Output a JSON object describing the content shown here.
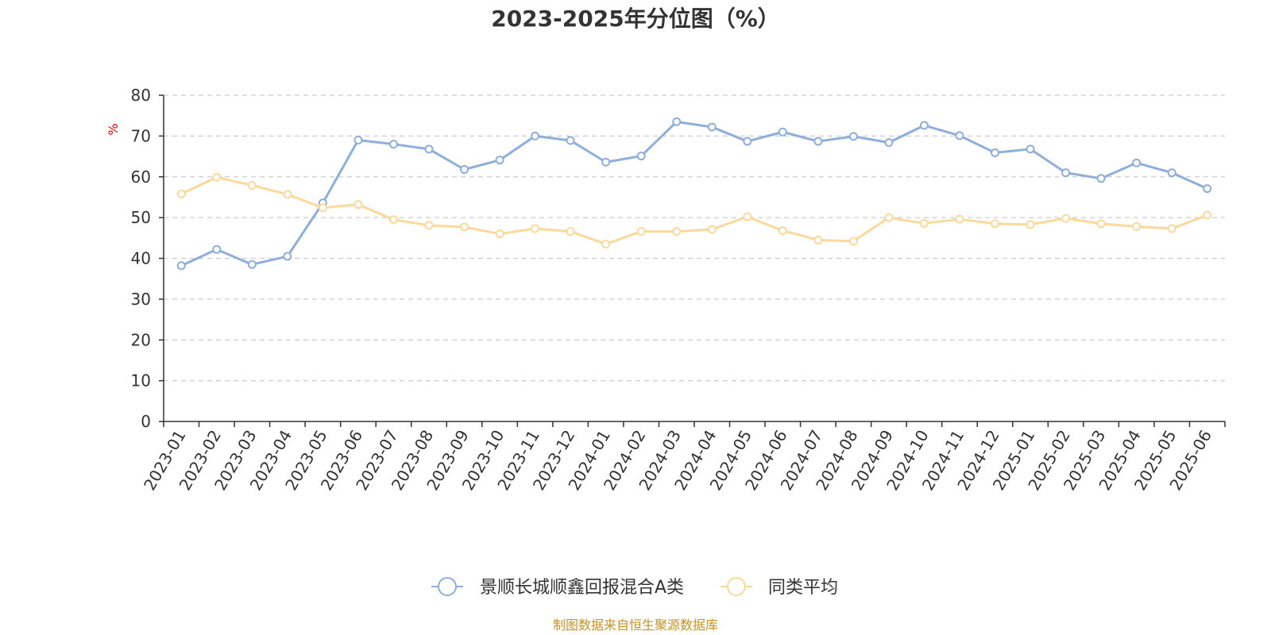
{
  "chart_data": {
    "type": "line",
    "title": "2023-2025年分位图（%）",
    "ylabel": "%",
    "xlabel": "",
    "ylim": [
      0,
      80
    ],
    "yticks": [
      0,
      10,
      20,
      30,
      40,
      50,
      60,
      70,
      80
    ],
    "grid": true,
    "legend_position": "bottom",
    "categories": [
      "2023-01",
      "2023-02",
      "2023-03",
      "2023-04",
      "2023-05",
      "2023-06",
      "2023-07",
      "2023-08",
      "2023-09",
      "2023-10",
      "2023-11",
      "2023-12",
      "2024-01",
      "2024-02",
      "2024-03",
      "2024-04",
      "2024-05",
      "2024-06",
      "2024-07",
      "2024-08",
      "2024-09",
      "2024-10",
      "2024-11",
      "2024-12",
      "2025-01",
      "2025-02",
      "2025-03",
      "2025-04",
      "2025-05",
      "2025-06"
    ],
    "series": [
      {
        "name": "景顺长城顺鑫回报混合A类",
        "color": "#8eaedb",
        "values": [
          38.2,
          42.2,
          38.5,
          40.5,
          53.6,
          69.0,
          68.0,
          66.8,
          61.8,
          64.1,
          70.0,
          68.9,
          63.6,
          65.1,
          73.5,
          72.2,
          68.7,
          71.0,
          68.7,
          69.9,
          68.4,
          72.6,
          70.1,
          65.9,
          66.8,
          61.0,
          59.6,
          63.4,
          61.0,
          57.1
        ]
      },
      {
        "name": "同类平均",
        "color": "#fcd99b",
        "values": [
          55.8,
          59.9,
          57.9,
          55.7,
          52.4,
          53.2,
          49.5,
          48.1,
          47.7,
          46.0,
          47.3,
          46.6,
          43.5,
          46.6,
          46.6,
          47.1,
          50.2,
          46.8,
          44.5,
          44.2,
          50.0,
          48.6,
          49.6,
          48.5,
          48.3,
          49.8,
          48.5,
          47.8,
          47.3,
          50.6
        ]
      }
    ],
    "source": "制图数据来自恒生聚源数据库"
  }
}
